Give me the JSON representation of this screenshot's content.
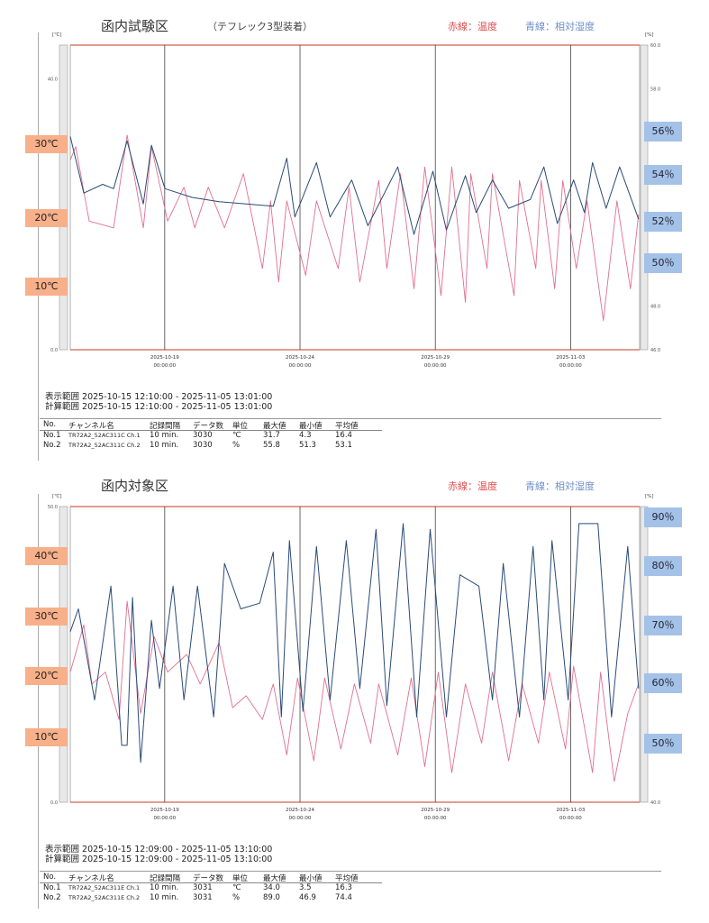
{
  "charts": [
    {
      "title": "函内試験区",
      "subtitle": "（テフレック3型装着）",
      "legend_red": "赤線：温度",
      "legend_blue": "青線：相対湿度",
      "left_unit": "[℃]",
      "right_unit": "[%]",
      "left_ticks": [
        "40.0",
        "0.0"
      ],
      "right_ticks": [
        "60.0",
        "58.0",
        "48.0",
        "46.0"
      ],
      "temp_labels": [
        "30℃",
        "20℃",
        "10℃"
      ],
      "hum_labels": [
        "56％",
        "54％",
        "52％",
        "50％"
      ],
      "date_ticks": [
        {
          "date": "2025-10-19",
          "time": "00:00:00"
        },
        {
          "date": "2025-10-24",
          "time": "00:00:00"
        },
        {
          "date": "2025-10-29",
          "time": "00:00:00"
        },
        {
          "date": "2025-11-03",
          "time": "00:00:00"
        }
      ],
      "display_range": "表示範囲 2025-10-15 12:10:00 - 2025-11-05 13:01:00",
      "calc_range": "計算範囲 2025-10-15 12:10:00 - 2025-11-05 13:01:00",
      "table": {
        "headers": [
          "No.",
          "チャンネル名",
          "記録間隔",
          "データ数",
          "単位",
          "最大値",
          "最小値",
          "平均値"
        ],
        "rows": [
          [
            "No.1",
            "TR72A2_52AC311C Ch.1",
            "10 min.",
            "3030",
            "℃",
            "31.7",
            "4.3",
            "16.4"
          ],
          [
            "No.2",
            "TR72A2_52AC311C Ch.2",
            "10 min.",
            "3030",
            "%",
            "55.8",
            "51.3",
            "53.1"
          ]
        ]
      }
    },
    {
      "title": "函内対象区",
      "subtitle": "",
      "legend_red": "赤線：温度",
      "legend_blue": "青線：相対湿度",
      "left_unit": "[℃]",
      "right_unit": "[%]",
      "left_ticks": [
        "50.0",
        "0.0"
      ],
      "right_ticks": [
        "40.0"
      ],
      "temp_labels": [
        "40℃",
        "30℃",
        "20℃",
        "10℃"
      ],
      "hum_labels": [
        "90％",
        "80％",
        "70％",
        "60％",
        "50％"
      ],
      "date_ticks": [
        {
          "date": "2025-10-19",
          "time": "00:00:00"
        },
        {
          "date": "2025-10-24",
          "time": "00:00:00"
        },
        {
          "date": "2025-10-29",
          "time": "00:00:00"
        },
        {
          "date": "2025-11-03",
          "time": "00:00:00"
        }
      ],
      "display_range": "表示範囲 2025-10-15 12:09:00 - 2025-11-05 13:10:00",
      "calc_range": "計算範囲 2025-10-15 12:09:00 - 2025-11-05 13:10:00",
      "table": {
        "headers": [
          "No.",
          "チャンネル名",
          "記録間隔",
          "データ数",
          "単位",
          "最大値",
          "最小値",
          "平均値"
        ],
        "rows": [
          [
            "No.1",
            "TR72A2_52AC311E Ch.1",
            "10 min.",
            "3031",
            "℃",
            "34.0",
            "3.5",
            "16.3"
          ],
          [
            "No.2",
            "TR72A2_52AC311E Ch.2",
            "10 min.",
            "3031",
            "%",
            "89.0",
            "46.9",
            "74.4"
          ]
        ]
      }
    }
  ],
  "colors": {
    "temp": "#e07090",
    "hum": "#2a4a78",
    "frame": "#d06050",
    "label_orange": "#f7b08a",
    "label_blue": "#a4c2e8"
  },
  "chart_data": [
    {
      "type": "line",
      "title": "函内試験区",
      "xlabel": "days since 2025-10-15 12:10",
      "xlim": [
        0,
        21.04
      ],
      "date_tick_days": [
        3.49,
        8.49,
        13.49,
        18.49
      ],
      "y_left": {
        "label": "℃",
        "ylim": [
          0,
          45
        ]
      },
      "y_right": {
        "label": "%",
        "ylim": [
          46,
          60
        ]
      },
      "series": [
        {
          "name": "温度",
          "axis": "left",
          "color": "#e07090",
          "points": [
            [
              0,
              28
            ],
            [
              0.2,
              30
            ],
            [
              0.7,
              19
            ],
            [
              1.6,
              18
            ],
            [
              2.1,
              31.7
            ],
            [
              2.7,
              18
            ],
            [
              3.0,
              30
            ],
            [
              3.6,
              19
            ],
            [
              4.2,
              24
            ],
            [
              4.6,
              18
            ],
            [
              5.1,
              24
            ],
            [
              5.7,
              18
            ],
            [
              6.4,
              26
            ],
            [
              7.1,
              12
            ],
            [
              7.4,
              22
            ],
            [
              7.7,
              10
            ],
            [
              8.0,
              22
            ],
            [
              8.7,
              11
            ],
            [
              9.1,
              22
            ],
            [
              9.9,
              12
            ],
            [
              10.3,
              24
            ],
            [
              10.7,
              10
            ],
            [
              11.4,
              25
            ],
            [
              11.7,
              12
            ],
            [
              12.2,
              26
            ],
            [
              12.7,
              9
            ],
            [
              13.1,
              27
            ],
            [
              13.7,
              8
            ],
            [
              14.1,
              27
            ],
            [
              14.6,
              7
            ],
            [
              14.8,
              26
            ],
            [
              15.4,
              12
            ],
            [
              15.6,
              26
            ],
            [
              16.4,
              8
            ],
            [
              16.6,
              25
            ],
            [
              17.2,
              12
            ],
            [
              17.4,
              25
            ],
            [
              17.9,
              9
            ],
            [
              18.2,
              25
            ],
            [
              18.7,
              12
            ],
            [
              19.1,
              22
            ],
            [
              19.7,
              4.3
            ],
            [
              20.2,
              22
            ],
            [
              20.7,
              9
            ],
            [
              21.0,
              20
            ]
          ]
        },
        {
          "name": "相対湿度",
          "axis": "right",
          "color": "#2a4a78",
          "points": [
            [
              0,
              55.8
            ],
            [
              0.5,
              53.2
            ],
            [
              1.2,
              53.6
            ],
            [
              1.6,
              53.4
            ],
            [
              2.1,
              55.6
            ],
            [
              2.7,
              52.7
            ],
            [
              3.0,
              55.4
            ],
            [
              3.5,
              53.4
            ],
            [
              4.5,
              53.0
            ],
            [
              5.5,
              52.8
            ],
            [
              6.5,
              52.7
            ],
            [
              7.5,
              52.6
            ],
            [
              8.0,
              54.8
            ],
            [
              8.3,
              52.1
            ],
            [
              9.1,
              54.6
            ],
            [
              9.6,
              52.1
            ],
            [
              10.4,
              53.8
            ],
            [
              11.0,
              51.7
            ],
            [
              12.1,
              54.4
            ],
            [
              12.7,
              51.3
            ],
            [
              13.4,
              54.2
            ],
            [
              13.9,
              51.5
            ],
            [
              14.6,
              54.0
            ],
            [
              15.0,
              52.3
            ],
            [
              15.6,
              53.8
            ],
            [
              16.2,
              52.5
            ],
            [
              17.0,
              52.9
            ],
            [
              17.5,
              54.4
            ],
            [
              18.0,
              51.8
            ],
            [
              18.6,
              53.8
            ],
            [
              19.0,
              52.3
            ],
            [
              19.3,
              54.6
            ],
            [
              19.8,
              52.5
            ],
            [
              20.3,
              54.4
            ],
            [
              21.0,
              52.0
            ]
          ]
        }
      ]
    },
    {
      "type": "line",
      "title": "函内対象区",
      "xlabel": "days since 2025-10-15 12:09",
      "xlim": [
        0,
        21.04
      ],
      "date_tick_days": [
        3.49,
        8.49,
        13.49,
        18.49
      ],
      "y_left": {
        "label": "℃",
        "ylim": [
          0,
          50
        ]
      },
      "y_right": {
        "label": "%",
        "ylim": [
          40,
          92
        ]
      },
      "series": [
        {
          "name": "温度",
          "axis": "left",
          "color": "#e07090",
          "points": [
            [
              0,
              22
            ],
            [
              0.5,
              30
            ],
            [
              0.8,
              20
            ],
            [
              1.3,
              22
            ],
            [
              1.8,
              14
            ],
            [
              2.1,
              34
            ],
            [
              2.6,
              15
            ],
            [
              3.1,
              28
            ],
            [
              3.6,
              22
            ],
            [
              4.3,
              25
            ],
            [
              4.8,
              20
            ],
            [
              5.5,
              27
            ],
            [
              6.0,
              16
            ],
            [
              6.5,
              18
            ],
            [
              7.1,
              14
            ],
            [
              7.5,
              20
            ],
            [
              8.0,
              8
            ],
            [
              8.4,
              21
            ],
            [
              9.0,
              7
            ],
            [
              9.4,
              21
            ],
            [
              10.0,
              9
            ],
            [
              10.5,
              20
            ],
            [
              11.1,
              10
            ],
            [
              11.4,
              20
            ],
            [
              12.1,
              8
            ],
            [
              12.6,
              21
            ],
            [
              13.1,
              6
            ],
            [
              13.6,
              22
            ],
            [
              14.1,
              5
            ],
            [
              14.6,
              20
            ],
            [
              15.2,
              10
            ],
            [
              15.6,
              22
            ],
            [
              16.2,
              7
            ],
            [
              16.7,
              20
            ],
            [
              17.3,
              10
            ],
            [
              17.7,
              22
            ],
            [
              18.3,
              9
            ],
            [
              18.6,
              23
            ],
            [
              19.3,
              5
            ],
            [
              19.6,
              22
            ],
            [
              20.1,
              3.5
            ],
            [
              20.6,
              15
            ],
            [
              21.0,
              20
            ]
          ]
        },
        {
          "name": "相対湿度",
          "axis": "right",
          "color": "#2a4a78",
          "points": [
            [
              0,
              70
            ],
            [
              0.3,
              74
            ],
            [
              0.9,
              58
            ],
            [
              1.5,
              78
            ],
            [
              1.9,
              50
            ],
            [
              2.1,
              50
            ],
            [
              2.3,
              76
            ],
            [
              2.6,
              47
            ],
            [
              3.0,
              72
            ],
            [
              3.3,
              60
            ],
            [
              3.8,
              78
            ],
            [
              4.2,
              58
            ],
            [
              4.7,
              78
            ],
            [
              5.3,
              55
            ],
            [
              5.7,
              82
            ],
            [
              6.3,
              74
            ],
            [
              7.0,
              75
            ],
            [
              7.5,
              84
            ],
            [
              7.8,
              55
            ],
            [
              8.1,
              86
            ],
            [
              8.6,
              56
            ],
            [
              9.1,
              85
            ],
            [
              9.6,
              58
            ],
            [
              10.2,
              86
            ],
            [
              10.7,
              60
            ],
            [
              11.3,
              88
            ],
            [
              11.7,
              57
            ],
            [
              12.3,
              89
            ],
            [
              12.8,
              55
            ],
            [
              13.3,
              88
            ],
            [
              13.9,
              55
            ],
            [
              14.4,
              80
            ],
            [
              15.1,
              78
            ],
            [
              15.6,
              58
            ],
            [
              16.0,
              82
            ],
            [
              16.6,
              55
            ],
            [
              17.1,
              85
            ],
            [
              17.5,
              58
            ],
            [
              17.8,
              86
            ],
            [
              18.4,
              58
            ],
            [
              18.8,
              89
            ],
            [
              19.5,
              89
            ],
            [
              20.0,
              55
            ],
            [
              20.6,
              85
            ],
            [
              21.0,
              60
            ]
          ]
        }
      ]
    }
  ]
}
